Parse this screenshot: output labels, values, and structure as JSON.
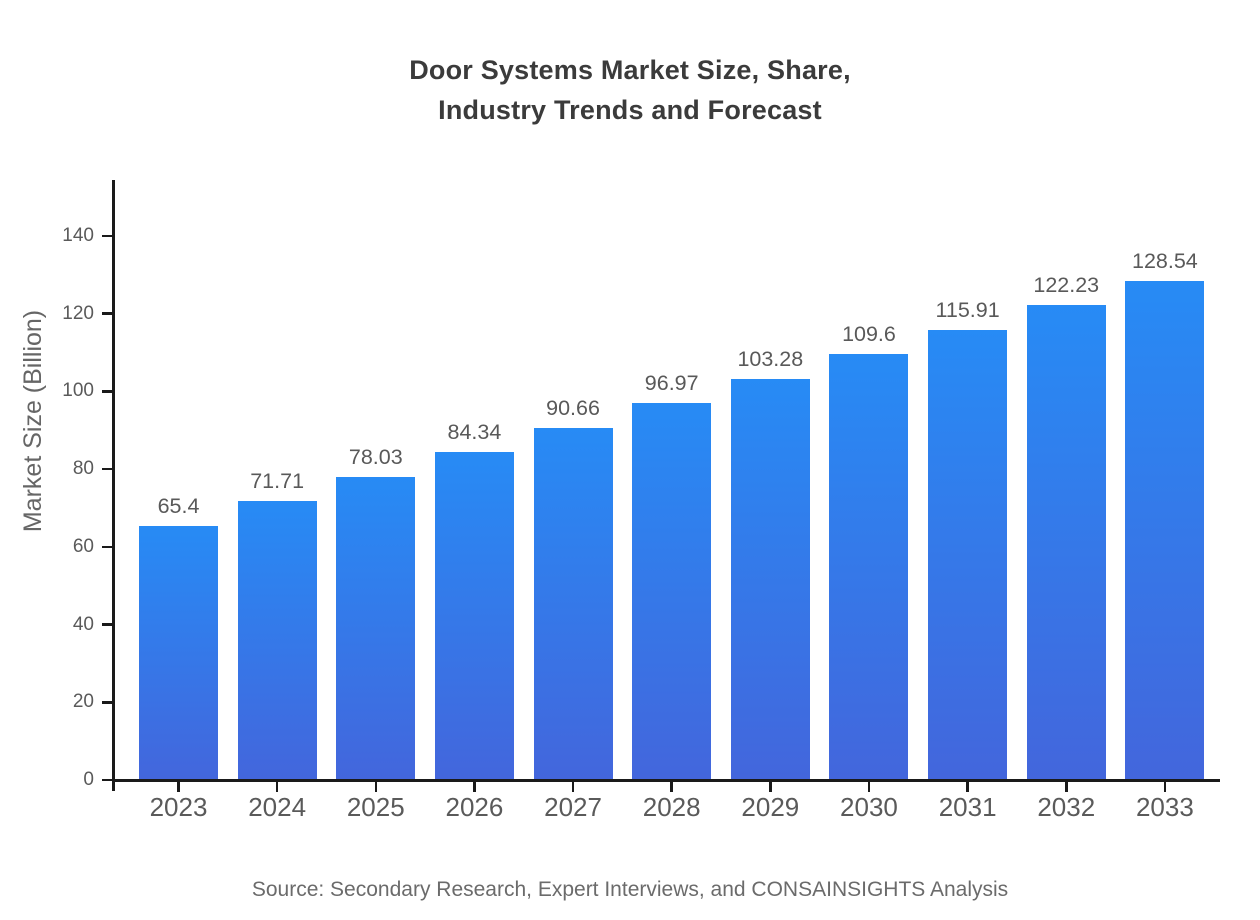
{
  "title": {
    "line1": "Door Systems Market Size, Share,",
    "line2": "Industry Trends and Forecast"
  },
  "source": "Source: Secondary Research, Expert Interviews, and CONSAINSIGHTS Analysis",
  "chart_data": {
    "type": "bar",
    "title": "Door Systems Market Size, Share, Industry Trends and Forecast",
    "categories": [
      "2023",
      "2024",
      "2025",
      "2026",
      "2027",
      "2028",
      "2029",
      "2030",
      "2031",
      "2032",
      "2033"
    ],
    "values": [
      65.4,
      71.71,
      78.03,
      84.34,
      90.66,
      96.97,
      103.28,
      109.6,
      115.91,
      122.23,
      128.54
    ],
    "xlabel": "",
    "ylabel": "Market Size (Billion)",
    "ylim": [
      0,
      155
    ],
    "yticks": [
      0,
      20,
      40,
      60,
      80,
      100,
      120,
      140
    ],
    "grid": false,
    "legend": "none",
    "value_labels_shown": true,
    "colors": {
      "bar_gradient_top": "#278BF5",
      "bar_gradient_bottom": "#4366DC",
      "axis": "#1a1a1a",
      "tick_label": "#5a5a5a",
      "title_text": "#3b3b3b",
      "source_text": "#6b6b6b"
    }
  }
}
